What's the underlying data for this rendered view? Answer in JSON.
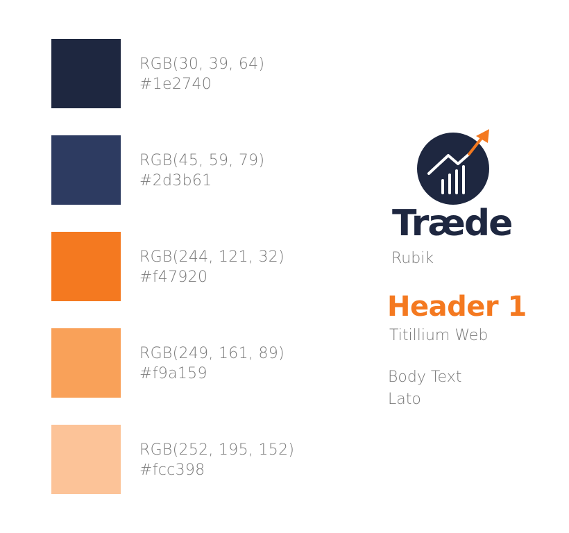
{
  "palette": [
    {
      "hex_color": "#1e2740",
      "rgb": "RGB(30, 39, 64)",
      "hex": "#1e2740"
    },
    {
      "hex_color": "#2d3b61",
      "rgb": "RGB(45, 59, 79)",
      "hex": "#2d3b61"
    },
    {
      "hex_color": "#f47920",
      "rgb": "RGB(244, 121, 32)",
      "hex": "#f47920"
    },
    {
      "hex_color": "#f9a159",
      "rgb": "RGB(249, 161, 89)",
      "hex": "#f9a159"
    },
    {
      "hex_color": "#fcc398",
      "rgb": "RGB(252, 195, 152)",
      "hex": "#fcc398"
    }
  ],
  "brand": {
    "name": "Træde",
    "logo_icon": "chart-growth-icon",
    "logo_font": "Rubik"
  },
  "typography": {
    "header_sample": "Header 1",
    "header_font": "Titillium Web",
    "body_sample": "Body Text",
    "body_font": "Lato"
  },
  "colors": {
    "navy": "#1e2740",
    "orange": "#f47920",
    "label_gray": "#7a7a7a"
  }
}
